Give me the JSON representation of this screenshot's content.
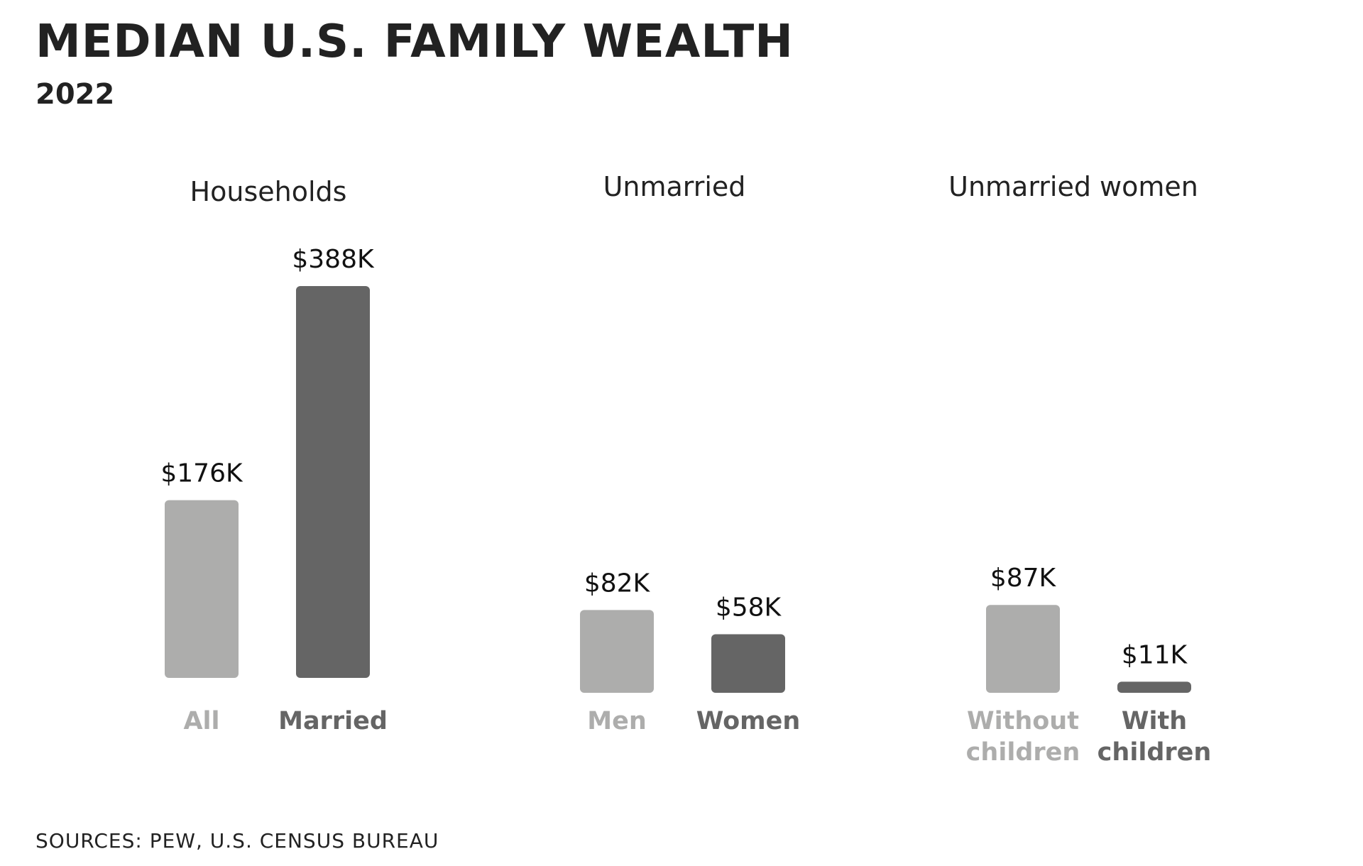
{
  "title": "MEDIAN U.S. FAMILY WEALTH",
  "subtitle": "2022",
  "source": "SOURCES: PEW, U.S. CENSUS BUREAU",
  "colors": {
    "light": "#adadac",
    "dark": "#656565",
    "text": "#222222"
  },
  "chart_data": [
    {
      "type": "bar",
      "title": "Households",
      "categories": [
        "All",
        "Married"
      ],
      "values": [
        176,
        388
      ],
      "value_labels": [
        "$176K",
        "$388K"
      ],
      "unit": "thousand USD",
      "ylim": [
        0,
        388
      ],
      "grid": false
    },
    {
      "type": "bar",
      "title": "Unmarried",
      "categories": [
        "Men",
        "Women"
      ],
      "values": [
        82,
        58
      ],
      "value_labels": [
        "$82K",
        "$58K"
      ],
      "unit": "thousand USD",
      "ylim": [
        0,
        388
      ],
      "grid": false
    },
    {
      "type": "bar",
      "title": "Unmarried women",
      "categories": [
        "Without children",
        "With children"
      ],
      "values": [
        87,
        11
      ],
      "value_labels": [
        "$87K",
        "$11K"
      ],
      "unit": "thousand USD",
      "ylim": [
        0,
        388
      ],
      "grid": false
    }
  ]
}
